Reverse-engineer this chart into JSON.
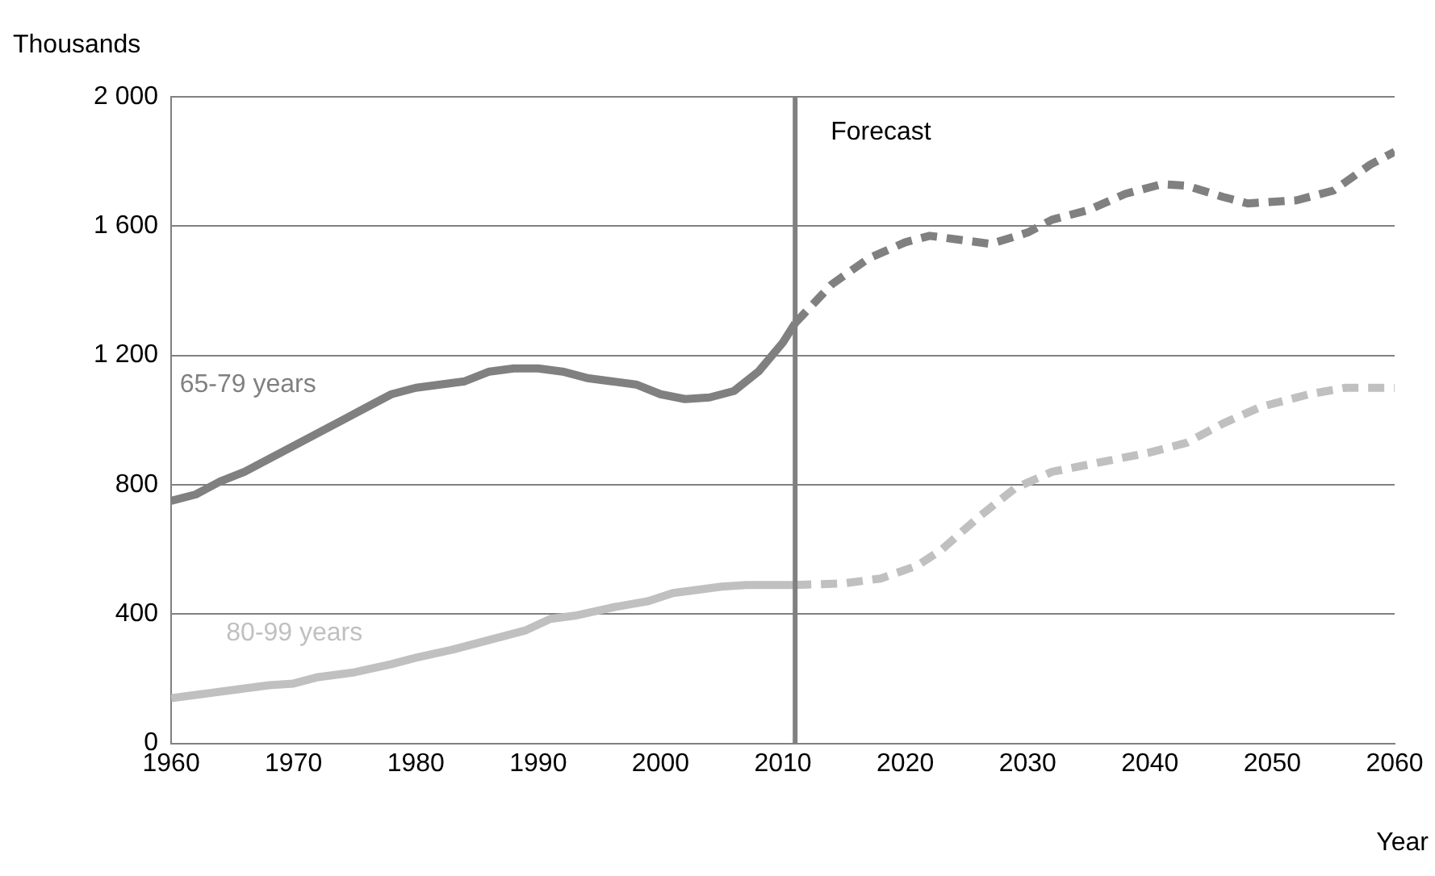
{
  "chart_data": {
    "type": "line",
    "xlabel": "Year",
    "ylabel": "Thousands",
    "xlim": [
      1960,
      2060
    ],
    "xticks": [
      1960,
      1970,
      1980,
      1990,
      2000,
      2010,
      2020,
      2030,
      2040,
      2050,
      2060
    ],
    "ylim": [
      0,
      2000
    ],
    "yticks": [
      0,
      400,
      800,
      {
        "value": 1200,
        "label": "1 200"
      },
      {
        "value": 1600,
        "label": "1 600"
      },
      {
        "value": 2000,
        "label": "2 000"
      }
    ],
    "grid": "y",
    "legend": false,
    "marker": "none",
    "ref_lines": [
      {
        "axis": "x",
        "value": 2011,
        "label": "Forecast",
        "color": "#808080"
      }
    ],
    "series": [
      {
        "name": "65-79 years",
        "color": "#808080",
        "line_style": "solid",
        "x": [
          1960,
          1962,
          1964,
          1966,
          1968,
          1970,
          1972,
          1974,
          1976,
          1978,
          1980,
          1982,
          1984,
          1986,
          1988,
          1990,
          1992,
          1994,
          1996,
          1998,
          2000,
          2002,
          2004,
          2006,
          2008,
          2010,
          2011
        ],
        "values": [
          750,
          770,
          810,
          840,
          880,
          920,
          960,
          1000,
          1040,
          1080,
          1100,
          1110,
          1120,
          1150,
          1160,
          1160,
          1150,
          1130,
          1120,
          1110,
          1080,
          1065,
          1070,
          1090,
          1150,
          1240,
          1300
        ]
      },
      {
        "color": "#808080",
        "line_style": "dashed",
        "x": [
          2011,
          2014,
          2017,
          2020,
          2022,
          2025,
          2027,
          2030,
          2032,
          2035,
          2038,
          2041,
          2043,
          2046,
          2048,
          2052,
          2055,
          2058,
          2060
        ],
        "values": [
          1300,
          1420,
          1500,
          1550,
          1570,
          1555,
          1545,
          1580,
          1620,
          1650,
          1700,
          1730,
          1725,
          1690,
          1670,
          1680,
          1710,
          1790,
          1830
        ]
      },
      {
        "name": "80-99 years",
        "color": "#c0c0c0",
        "line_style": "solid",
        "x": [
          1960,
          1962,
          1965,
          1968,
          1970,
          1972,
          1975,
          1978,
          1980,
          1983,
          1986,
          1989,
          1991,
          1993,
          1996,
          1999,
          2001,
          2003,
          2005,
          2007,
          2011
        ],
        "values": [
          140,
          150,
          165,
          180,
          185,
          205,
          220,
          245,
          265,
          290,
          320,
          350,
          385,
          395,
          420,
          440,
          465,
          475,
          485,
          490,
          490
        ]
      },
      {
        "color": "#c0c0c0",
        "line_style": "dashed",
        "x": [
          2011,
          2015,
          2018,
          2021,
          2023,
          2026,
          2029,
          2032,
          2036,
          2040,
          2043,
          2046,
          2049,
          2053,
          2056,
          2060
        ],
        "values": [
          490,
          495,
          510,
          550,
          600,
          700,
          790,
          840,
          870,
          900,
          930,
          990,
          1040,
          1080,
          1100,
          1100
        ]
      }
    ]
  }
}
